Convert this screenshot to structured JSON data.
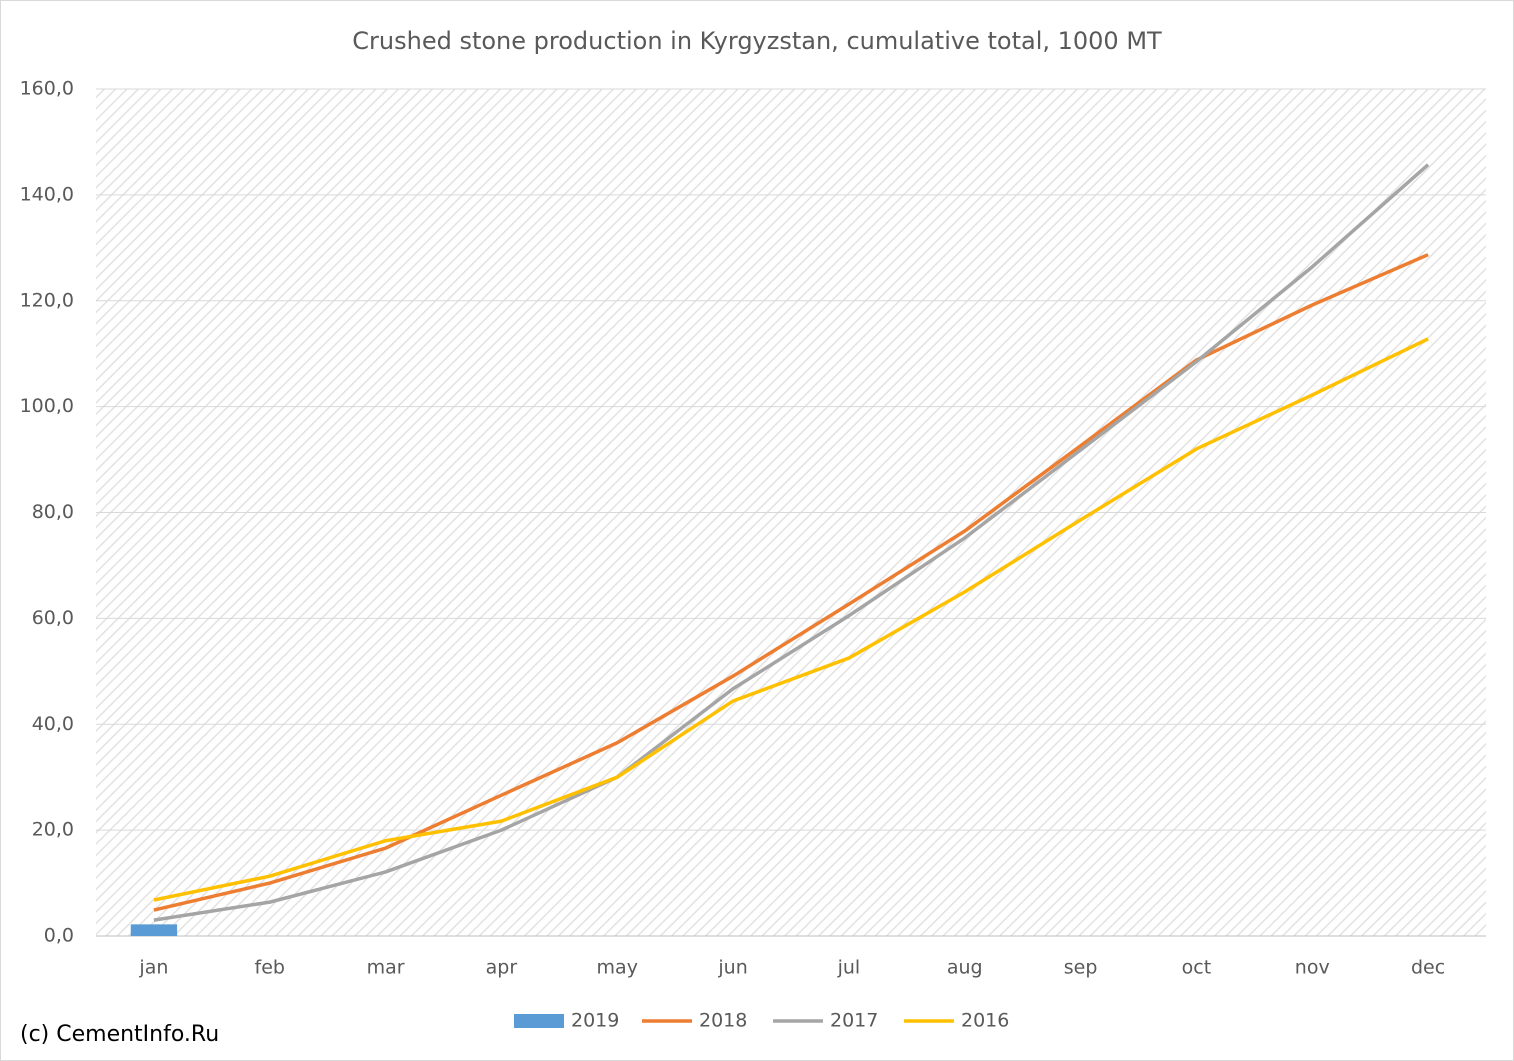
{
  "chart_data": {
    "type": "line",
    "title": "Crushed stone production in Kyrgyzstan, cumulative total, 1000 MT",
    "categories": [
      "jan",
      "feb",
      "mar",
      "apr",
      "may",
      "jun",
      "jul",
      "aug",
      "sep",
      "oct",
      "nov",
      "dec"
    ],
    "series": [
      {
        "name": "2019",
        "type": "bar",
        "color": "#5b9bd5",
        "values": [
          2.2,
          null,
          null,
          null,
          null,
          null,
          null,
          null,
          null,
          null,
          null,
          null
        ]
      },
      {
        "name": "2018",
        "type": "line",
        "color": "#ed7d31",
        "values": [
          4.9,
          10,
          16.6,
          26.6,
          36.5,
          49.1,
          62.7,
          76.5,
          92.6,
          108.8,
          119.2,
          128.7
        ]
      },
      {
        "name": "2017",
        "type": "line",
        "color": "#a5a5a5",
        "values": [
          3,
          6.4,
          12.1,
          20,
          30,
          46.7,
          60.5,
          75.2,
          91.8,
          108.5,
          126.4,
          145.7
        ]
      },
      {
        "name": "2016",
        "type": "line",
        "color": "#ffc000",
        "values": [
          6.8,
          11.3,
          18,
          21.7,
          30,
          44.4,
          52.5,
          65,
          78.6,
          92,
          102.2,
          112.8
        ]
      }
    ],
    "ylim": [
      0,
      160
    ],
    "yticks": [
      {
        "value": 0,
        "label": "0,0"
      },
      {
        "value": 20,
        "label": "20,0"
      },
      {
        "value": 40,
        "label": "40,0"
      },
      {
        "value": 60,
        "label": "60,0"
      },
      {
        "value": 80,
        "label": "80,0"
      },
      {
        "value": 100,
        "label": "100,0"
      },
      {
        "value": 120,
        "label": "120,0"
      },
      {
        "value": 140,
        "label": "140,0"
      },
      {
        "value": 160,
        "label": "160,0"
      }
    ],
    "grid": true,
    "legend": "bottom",
    "source": "(c) CementInfo.Ru"
  }
}
